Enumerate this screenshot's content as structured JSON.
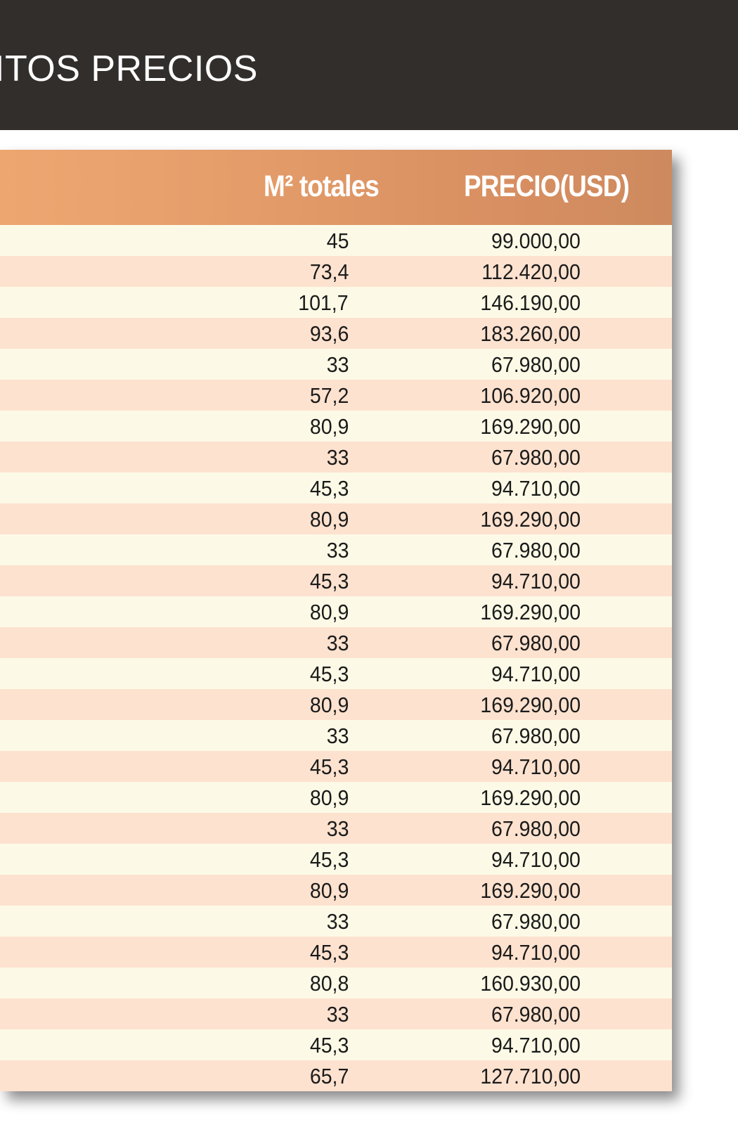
{
  "header": {
    "title": "ITOS PRECIOS"
  },
  "table": {
    "columns": {
      "m2": "M² totales",
      "price": "PRECIO(USD)"
    },
    "rows": [
      {
        "m2": "45",
        "price": "99.000,00"
      },
      {
        "m2": "73,4",
        "price": "112.420,00"
      },
      {
        "m2": "101,7",
        "price": "146.190,00"
      },
      {
        "m2": "93,6",
        "price": "183.260,00"
      },
      {
        "m2": "33",
        "price": "67.980,00"
      },
      {
        "m2": "57,2",
        "price": "106.920,00"
      },
      {
        "m2": "80,9",
        "price": "169.290,00"
      },
      {
        "m2": "33",
        "price": "67.980,00"
      },
      {
        "m2": "45,3",
        "price": "94.710,00"
      },
      {
        "m2": "80,9",
        "price": "169.290,00"
      },
      {
        "m2": "33",
        "price": "67.980,00"
      },
      {
        "m2": "45,3",
        "price": "94.710,00"
      },
      {
        "m2": "80,9",
        "price": "169.290,00"
      },
      {
        "m2": "33",
        "price": "67.980,00"
      },
      {
        "m2": "45,3",
        "price": "94.710,00"
      },
      {
        "m2": "80,9",
        "price": "169.290,00"
      },
      {
        "m2": "33",
        "price": "67.980,00"
      },
      {
        "m2": "45,3",
        "price": "94.710,00"
      },
      {
        "m2": "80,9",
        "price": "169.290,00"
      },
      {
        "m2": "33",
        "price": "67.980,00"
      },
      {
        "m2": "45,3",
        "price": "94.710,00"
      },
      {
        "m2": "80,9",
        "price": "169.290,00"
      },
      {
        "m2": "33",
        "price": "67.980,00"
      },
      {
        "m2": "45,3",
        "price": "94.710,00"
      },
      {
        "m2": "80,8",
        "price": "160.930,00"
      },
      {
        "m2": "33",
        "price": "67.980,00"
      },
      {
        "m2": "45,3",
        "price": "94.710,00"
      },
      {
        "m2": "65,7",
        "price": "127.710,00"
      }
    ]
  },
  "colors": {
    "header_bg": "#322e2b",
    "table_header_start": "#eea671",
    "table_header_end": "#cd8a5e",
    "row_light": "#fcfae6",
    "row_peach": "#fde2cf"
  }
}
